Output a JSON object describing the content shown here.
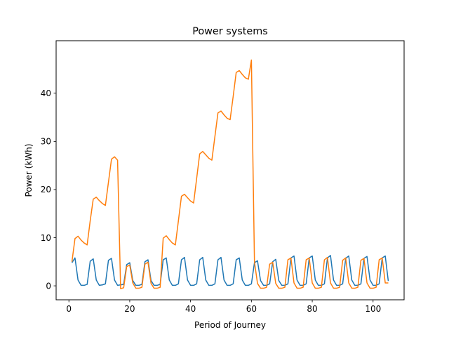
{
  "chart_data": {
    "type": "line",
    "title": "Power systems",
    "xlabel": "Period of Journey",
    "ylabel": "Power (kWh)",
    "xlim": [
      -4.2,
      110.2
    ],
    "ylim": [
      -2.9,
      50.9
    ],
    "xticks": [
      0,
      20,
      40,
      60,
      80,
      100
    ],
    "yticks": [
      0,
      10,
      20,
      30,
      40
    ],
    "grid": false,
    "series": [
      {
        "color": "#1f77b4",
        "x": [
          1,
          2,
          3,
          4,
          5,
          6,
          7,
          8,
          9,
          10,
          11,
          12,
          13,
          14,
          15,
          16,
          17,
          18,
          19,
          20,
          21,
          22,
          23,
          24,
          25,
          26,
          27,
          28,
          29,
          30,
          31,
          32,
          33,
          34,
          35,
          36,
          37,
          38,
          39,
          40,
          41,
          42,
          43,
          44,
          45,
          46,
          47,
          48,
          49,
          50,
          51,
          52,
          53,
          54,
          55,
          56,
          57,
          58,
          59,
          60,
          61,
          62,
          63,
          64,
          65,
          66,
          67,
          68,
          69,
          70,
          71,
          72,
          73,
          74,
          75,
          76,
          77,
          78,
          79,
          80,
          81,
          82,
          83,
          84,
          85,
          86,
          87,
          88,
          89,
          90,
          91,
          92,
          93,
          94,
          95,
          96,
          97,
          98,
          99,
          100,
          101,
          102,
          103,
          104,
          105
        ],
        "y": [
          4.8,
          5.8,
          1.2,
          0.1,
          0.1,
          0.3,
          5.1,
          5.6,
          1.2,
          0.1,
          0.2,
          0.4,
          5.3,
          5.7,
          1.2,
          0.1,
          0.2,
          0.3,
          4.4,
          4.8,
          1.1,
          0.1,
          0.1,
          0.3,
          5.0,
          5.4,
          1.1,
          0.1,
          0.1,
          0.3,
          5.4,
          5.8,
          1.2,
          0.1,
          0.1,
          0.4,
          5.4,
          5.9,
          1.2,
          0.1,
          0.1,
          0.4,
          5.4,
          5.9,
          1.2,
          0.1,
          0.1,
          0.4,
          5.4,
          5.9,
          1.2,
          0.1,
          0.1,
          0.4,
          5.4,
          5.8,
          1.2,
          0.1,
          0.1,
          0.4,
          4.8,
          5.2,
          1.1,
          0.1,
          0.1,
          0.4,
          5.0,
          5.5,
          1.1,
          0.1,
          0.1,
          0.4,
          5.8,
          6.2,
          1.2,
          0.1,
          0.1,
          0.4,
          5.8,
          6.2,
          1.2,
          0.1,
          0.1,
          0.4,
          5.8,
          6.3,
          1.2,
          0.1,
          0.1,
          0.4,
          5.7,
          6.2,
          1.2,
          0.1,
          0.1,
          0.4,
          5.7,
          6.1,
          1.2,
          0.1,
          0.1,
          0.4,
          5.8,
          6.2,
          1.0
        ]
      },
      {
        "color": "#ff7f0e",
        "x": [
          1,
          2,
          3,
          4,
          5,
          6,
          7,
          8,
          9,
          10,
          11,
          12,
          13,
          14,
          15,
          16,
          17,
          18,
          19,
          20,
          21,
          22,
          23,
          24,
          25,
          26,
          27,
          28,
          29,
          30,
          31,
          32,
          33,
          34,
          35,
          36,
          37,
          38,
          39,
          40,
          41,
          42,
          43,
          44,
          45,
          46,
          47,
          48,
          49,
          50,
          51,
          52,
          53,
          54,
          55,
          56,
          57,
          58,
          59,
          60,
          61,
          62,
          63,
          64,
          65,
          66,
          67,
          68,
          69,
          70,
          71,
          72,
          73,
          74,
          75,
          76,
          77,
          78,
          79,
          80,
          81,
          82,
          83,
          84,
          85,
          86,
          87,
          88,
          89,
          90,
          91,
          92,
          93,
          94,
          95,
          96,
          97,
          98,
          99,
          100,
          101,
          102,
          103,
          104,
          105
        ],
        "y": [
          5.0,
          9.8,
          10.3,
          9.5,
          8.9,
          8.5,
          13.5,
          18.0,
          18.4,
          17.7,
          17.1,
          16.7,
          21.5,
          26.3,
          26.8,
          26.1,
          -0.6,
          -0.4,
          4.0,
          4.3,
          0.6,
          -0.5,
          -0.5,
          -0.3,
          4.5,
          4.9,
          0.5,
          -0.5,
          -0.5,
          -0.3,
          9.9,
          10.4,
          9.6,
          8.9,
          8.5,
          13.5,
          18.6,
          19.0,
          18.3,
          17.6,
          17.2,
          22.3,
          27.4,
          27.9,
          27.2,
          26.5,
          26.1,
          31.0,
          35.9,
          36.3,
          35.5,
          34.8,
          34.5,
          39.3,
          44.3,
          44.7,
          43.9,
          43.2,
          42.9,
          46.9,
          5.0,
          0.5,
          -0.5,
          -0.5,
          -0.3,
          4.5,
          4.9,
          0.5,
          -0.5,
          -0.5,
          -0.3,
          5.4,
          5.8,
          0.6,
          -0.5,
          -0.5,
          -0.3,
          5.4,
          5.8,
          0.6,
          -0.5,
          -0.5,
          -0.3,
          5.4,
          5.9,
          0.6,
          -0.5,
          -0.5,
          -0.3,
          5.3,
          5.8,
          0.6,
          -0.5,
          -0.5,
          -0.3,
          5.3,
          5.7,
          0.6,
          -0.5,
          -0.5,
          -0.3,
          5.4,
          5.8,
          0.6,
          0.6
        ]
      }
    ]
  }
}
